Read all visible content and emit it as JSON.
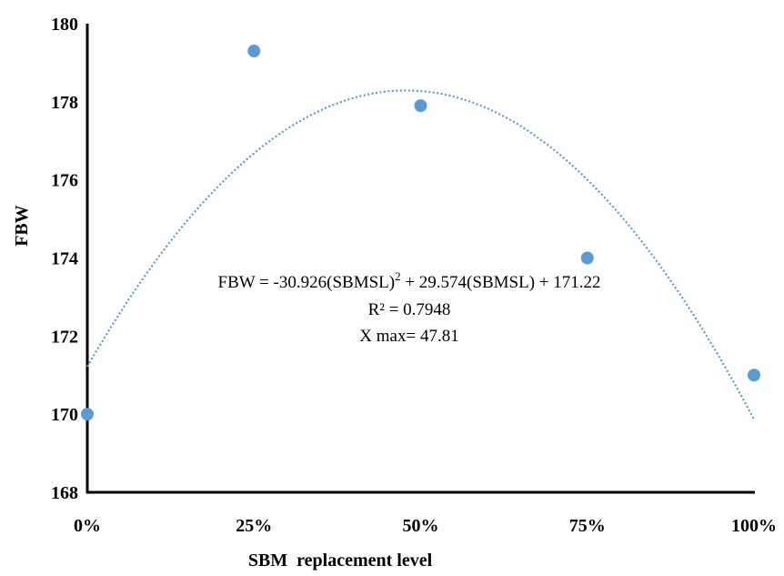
{
  "chart_data": {
    "type": "scatter",
    "xlabel": "SBM  replacement level",
    "ylabel": "FBW",
    "x_tick_labels": [
      "0%",
      "25%",
      "50%",
      "75%",
      "100%"
    ],
    "y_tick_labels": [
      "168",
      "170",
      "172",
      "174",
      "176",
      "178",
      "180"
    ],
    "xlim": [
      0,
      1
    ],
    "ylim": [
      168,
      180
    ],
    "grid": false,
    "points": [
      {
        "x": 0.0,
        "y": 170.0
      },
      {
        "x": 0.25,
        "y": 179.3
      },
      {
        "x": 0.5,
        "y": 177.9
      },
      {
        "x": 0.75,
        "y": 174.0
      },
      {
        "x": 1.0,
        "y": 171.0
      }
    ],
    "trendline": {
      "type": "polynomial",
      "coefficients": [
        -30.926,
        29.574,
        171.22
      ],
      "style": "dotted"
    },
    "annotations": {
      "equation_main": "FBW = -30.926(SBMSL)",
      "equation_sup": "2",
      "equation_rest": "  + 29.574(SBMSL)  + 171.22",
      "r_squared": "R² = 0.7948",
      "x_max": "X max= 47.81"
    },
    "colors": {
      "marker": "#5b9bd5",
      "trendline": "#5b9bd5",
      "axis": "#000000"
    }
  }
}
